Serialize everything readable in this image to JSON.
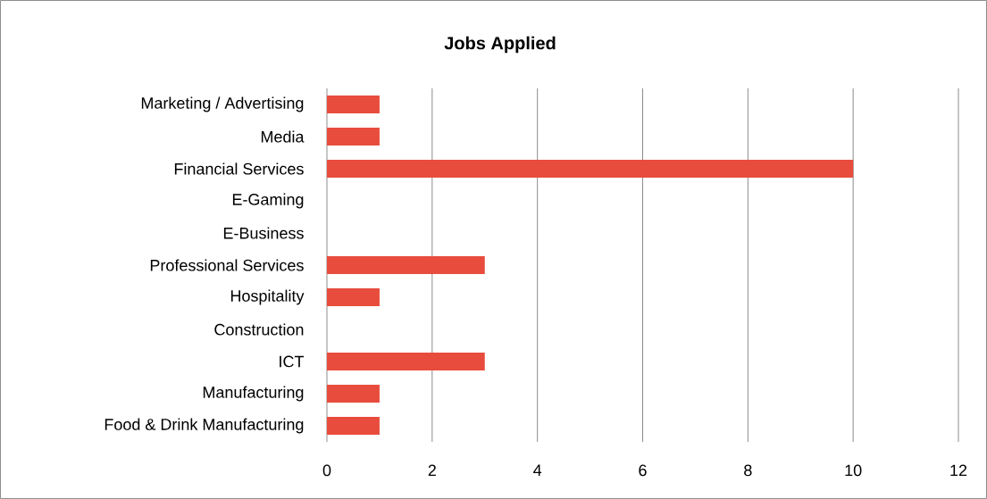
{
  "chart_data": {
    "type": "bar",
    "orientation": "horizontal",
    "title": "Jobs Applied",
    "categories": [
      "Marketing / Advertising",
      "Media",
      "Financial Services",
      "E-Gaming",
      "E-Business",
      "Professional Services",
      "Hospitality",
      "Construction",
      "ICT",
      "Manufacturing",
      "Food & Drink Manufacturing"
    ],
    "values": [
      1,
      1,
      10,
      0,
      0,
      3,
      1,
      0,
      3,
      1,
      1
    ],
    "color": "#e84c3d",
    "xlim": [
      0,
      12
    ],
    "xticks": [
      0,
      2,
      4,
      6,
      8,
      10,
      12
    ],
    "grid": "x"
  }
}
